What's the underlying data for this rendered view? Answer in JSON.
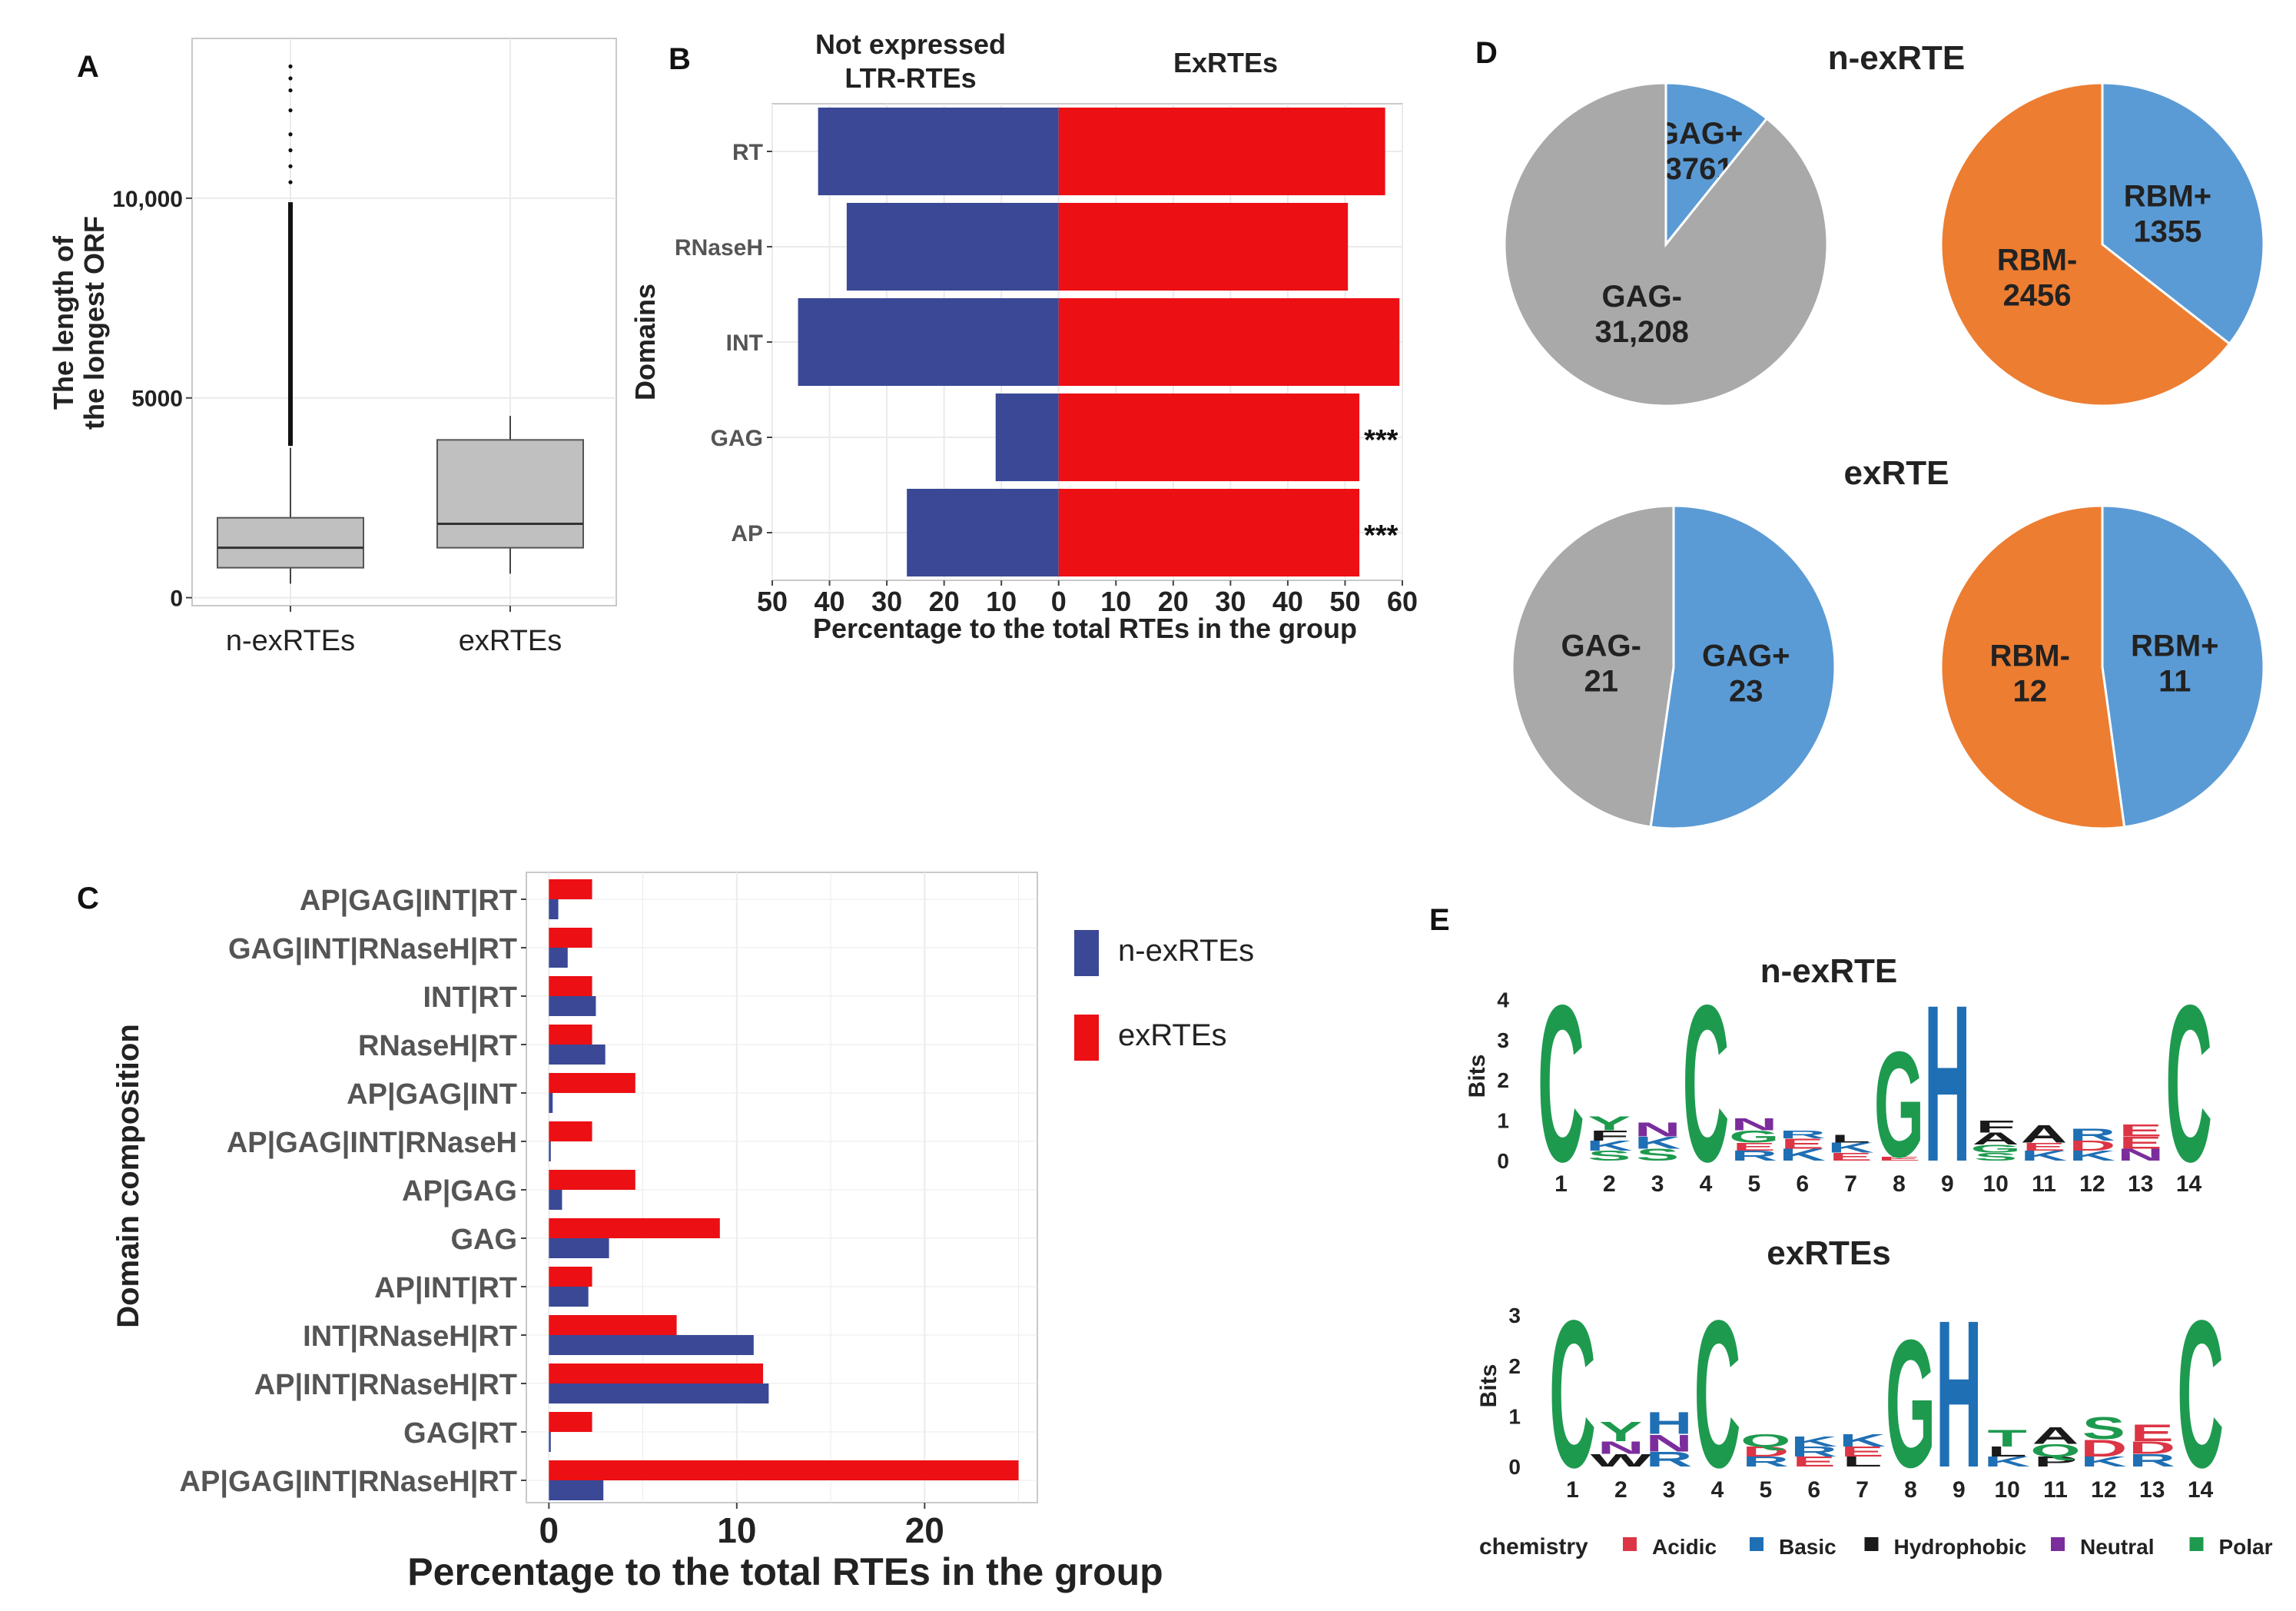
{
  "colors": {
    "n_ex": "#3A4896",
    "ex": "#EC0F14",
    "grey": "#A9A9A9",
    "blue_light": "#5B9BD5",
    "orange": "#ED7D31",
    "acidic": "#DC3545",
    "basic": "#1F6FB4",
    "hydrophobic": "#1A1A1A",
    "neutral": "#7B2D9C",
    "polar": "#1E9A4F",
    "grid": "#EBEBEB",
    "box_fill": "#C0C0C0"
  },
  "chart_data": [
    {
      "panel": "A",
      "type": "box",
      "ylabel": "The length of\nthe longest ORF",
      "ylim": [
        -200,
        14000
      ],
      "yticks": [
        0,
        5000,
        10000
      ],
      "ytick_labels": [
        "0",
        "5000",
        "10,000"
      ],
      "categories": [
        "n-exRTEs",
        "exRTEs"
      ],
      "boxes": [
        {
          "name": "n-exRTEs",
          "min": 350,
          "q1": 750,
          "median": 1250,
          "q3": 2000,
          "whisker_max": 3750,
          "outliers": [
            3800,
            4300,
            4900,
            5400,
            6000,
            6600,
            7200,
            7800,
            8400,
            9000,
            9500,
            9900,
            10400,
            10800,
            11200,
            11600,
            12200,
            12700,
            13000,
            13300
          ]
        },
        {
          "name": "exRTEs",
          "min": 600,
          "q1": 1250,
          "median": 1850,
          "q3": 3950,
          "whisker_max": 4550,
          "outliers": []
        }
      ]
    },
    {
      "panel": "B",
      "type": "bar",
      "orientation": "horizontal-diverging",
      "left_title": "Not expressed\nLTR-RTEs",
      "right_title": "ExRTEs",
      "ylabel": "Domains",
      "xlabel": "Percentage to the total RTEs in the group",
      "xlim": [
        -50,
        60
      ],
      "xticks": [
        -50,
        -40,
        -30,
        -20,
        -10,
        0,
        10,
        20,
        30,
        40,
        50,
        60
      ],
      "xtick_labels": [
        "50",
        "40",
        "30",
        "20",
        "10",
        "0",
        "10",
        "20",
        "30",
        "40",
        "50",
        "60"
      ],
      "categories": [
        "RT",
        "RNaseH",
        "INT",
        "GAG",
        "AP"
      ],
      "series": [
        {
          "name": "Not expressed LTR-RTEs",
          "values": [
            42,
            37,
            45.5,
            11,
            26.5
          ]
        },
        {
          "name": "ExRTEs",
          "values": [
            57,
            50.5,
            59.5,
            52.5,
            52.5
          ]
        }
      ],
      "annotations": [
        "",
        "",
        "",
        "***",
        "***"
      ]
    },
    {
      "panel": "C",
      "type": "bar",
      "orientation": "horizontal-grouped",
      "ylabel": "Domain composition",
      "xlabel": "Percentage to the total RTEs in the group",
      "xlim": [
        -1.2,
        26
      ],
      "xticks": [
        0,
        10,
        20
      ],
      "xtick_labels": [
        "0",
        "10",
        "20"
      ],
      "categories": [
        "AP|GAG|INT|RT",
        "GAG|INT|RNaseH|RT",
        "INT|RT",
        "RNaseH|RT",
        "AP|GAG|INT",
        "AP|GAG|INT|RNaseH",
        "AP|GAG",
        "GAG",
        "AP|INT|RT",
        "INT|RNaseH|RT",
        "AP|INT|RNaseH|RT",
        "GAG|RT",
        "AP|GAG|INT|RNaseH|RT"
      ],
      "series": [
        {
          "name": "n-exRTEs",
          "values": [
            0.5,
            1.0,
            2.5,
            3.0,
            0.2,
            0.1,
            0.7,
            3.2,
            2.1,
            10.9,
            11.7,
            0.1,
            2.9
          ]
        },
        {
          "name": "exRTEs",
          "values": [
            2.3,
            2.3,
            2.3,
            2.3,
            4.6,
            2.3,
            4.6,
            9.1,
            2.3,
            6.8,
            11.4,
            2.3,
            25.0
          ]
        }
      ],
      "legend": [
        "n-exRTEs",
        "exRTEs"
      ]
    },
    {
      "panel": "D",
      "type": "pie",
      "rows": [
        {
          "title": "n-exRTE",
          "pies": [
            {
              "slices": [
                {
                  "label": "GAG+",
                  "value": 3761,
                  "value_label": "3761"
                },
                {
                  "label": "GAG-",
                  "value": 31208,
                  "value_label": "31,208"
                }
              ]
            },
            {
              "slices": [
                {
                  "label": "RBM+",
                  "value": 1355,
                  "value_label": "1355"
                },
                {
                  "label": "RBM-",
                  "value": 2456,
                  "value_label": "2456"
                }
              ]
            }
          ]
        },
        {
          "title": "exRTE",
          "pies": [
            {
              "slices": [
                {
                  "label": "GAG+",
                  "value": 23,
                  "value_label": "23"
                },
                {
                  "label": "GAG-",
                  "value": 21,
                  "value_label": "21"
                }
              ]
            },
            {
              "slices": [
                {
                  "label": "RBM+",
                  "value": 11,
                  "value_label": "11"
                },
                {
                  "label": "RBM-",
                  "value": 12,
                  "value_label": "12"
                }
              ]
            }
          ]
        }
      ]
    },
    {
      "panel": "E",
      "type": "sequence-logo",
      "ylabel": "Bits",
      "positions": [
        "1",
        "2",
        "3",
        "4",
        "5",
        "6",
        "7",
        "8",
        "9",
        "10",
        "11",
        "12",
        "13",
        "14"
      ],
      "logos": [
        {
          "title": "n-exRTE",
          "ylim": [
            0,
            4.2
          ],
          "yticks": [
            "0",
            "1",
            "2",
            "3",
            "4"
          ],
          "columns": [
            [
              [
                "C",
                "polar",
                4.0
              ]
            ],
            [
              [
                "S",
                "polar",
                0.25
              ],
              [
                "K",
                "basic",
                0.25
              ],
              [
                "F",
                "hydrophobic",
                0.25
              ],
              [
                "Y",
                "polar",
                0.35
              ]
            ],
            [
              [
                "S",
                "polar",
                0.3
              ],
              [
                "K",
                "basic",
                0.3
              ],
              [
                "N",
                "neutral",
                0.35
              ]
            ],
            [
              [
                "C",
                "polar",
                4.0
              ]
            ],
            [
              [
                "R",
                "basic",
                0.25
              ],
              [
                "E",
                "acidic",
                0.2
              ],
              [
                "G",
                "polar",
                0.3
              ],
              [
                "N",
                "neutral",
                0.3
              ]
            ],
            [
              [
                "K",
                "basic",
                0.3
              ],
              [
                "E",
                "acidic",
                0.25
              ],
              [
                "R",
                "basic",
                0.2
              ]
            ],
            [
              [
                "E",
                "acidic",
                0.2
              ],
              [
                "K",
                "basic",
                0.25
              ],
              [
                "L",
                "hydrophobic",
                0.2
              ]
            ],
            [
              [
                "E",
                "acidic",
                0.1
              ],
              [
                "G",
                "polar",
                2.7
              ]
            ],
            [
              [
                "H",
                "basic",
                4.0
              ]
            ],
            [
              [
                "S",
                "polar",
                0.2
              ],
              [
                "G",
                "polar",
                0.2
              ],
              [
                "A",
                "hydrophobic",
                0.3
              ],
              [
                "F",
                "hydrophobic",
                0.3
              ]
            ],
            [
              [
                "K",
                "basic",
                0.25
              ],
              [
                "E",
                "acidic",
                0.2
              ],
              [
                "A",
                "hydrophobic",
                0.45
              ]
            ],
            [
              [
                "K",
                "basic",
                0.25
              ],
              [
                "D",
                "acidic",
                0.25
              ],
              [
                "R",
                "basic",
                0.3
              ]
            ],
            [
              [
                "N",
                "neutral",
                0.3
              ],
              [
                "E",
                "acidic",
                0.3
              ],
              [
                "E",
                "acidic",
                0.3
              ]
            ],
            [
              [
                "C",
                "polar",
                4.0
              ]
            ]
          ]
        },
        {
          "title": "exRTEs",
          "ylim": [
            0,
            3.2
          ],
          "yticks": [
            "0",
            "1",
            "2",
            "3"
          ],
          "columns": [
            [
              [
                "C",
                "polar",
                3.0
              ]
            ],
            [
              [
                "W",
                "hydrophobic",
                0.25
              ],
              [
                "N",
                "neutral",
                0.25
              ],
              [
                "Y",
                "polar",
                0.4
              ]
            ],
            [
              [
                "R",
                "basic",
                0.3
              ],
              [
                "N",
                "neutral",
                0.35
              ],
              [
                "H",
                "basic",
                0.45
              ]
            ],
            [
              [
                "C",
                "polar",
                3.0
              ]
            ],
            [
              [
                "R",
                "basic",
                0.2
              ],
              [
                "D",
                "acidic",
                0.2
              ],
              [
                "Q",
                "polar",
                0.25
              ]
            ],
            [
              [
                "E",
                "acidic",
                0.2
              ],
              [
                "R",
                "basic",
                0.2
              ],
              [
                "K",
                "basic",
                0.2
              ]
            ],
            [
              [
                "L",
                "hydrophobic",
                0.2
              ],
              [
                "E",
                "acidic",
                0.2
              ],
              [
                "K",
                "basic",
                0.25
              ]
            ],
            [
              [
                "G",
                "polar",
                2.6
              ]
            ],
            [
              [
                "H",
                "basic",
                3.0
              ]
            ],
            [
              [
                "K",
                "basic",
                0.2
              ],
              [
                "L",
                "hydrophobic",
                0.2
              ],
              [
                "T",
                "polar",
                0.35
              ]
            ],
            [
              [
                "P",
                "hydrophobic",
                0.2
              ],
              [
                "Q",
                "polar",
                0.25
              ],
              [
                "A",
                "hydrophobic",
                0.35
              ]
            ],
            [
              [
                "K",
                "basic",
                0.2
              ],
              [
                "D",
                "acidic",
                0.35
              ],
              [
                "S",
                "polar",
                0.45
              ]
            ],
            [
              [
                "R",
                "basic",
                0.25
              ],
              [
                "D",
                "acidic",
                0.25
              ],
              [
                "E",
                "acidic",
                0.35
              ]
            ],
            [
              [
                "C",
                "polar",
                3.0
              ]
            ]
          ]
        }
      ],
      "legend_title": "chemistry",
      "legend": [
        {
          "label": "Acidic",
          "color_key": "acidic"
        },
        {
          "label": "Basic",
          "color_key": "basic"
        },
        {
          "label": "Hydrophobic",
          "color_key": "hydrophobic"
        },
        {
          "label": "Neutral",
          "color_key": "neutral"
        },
        {
          "label": "Polar",
          "color_key": "polar"
        }
      ]
    }
  ],
  "panel_letters": {
    "a": "A",
    "b": "B",
    "c": "C",
    "d": "D",
    "e": "E"
  }
}
